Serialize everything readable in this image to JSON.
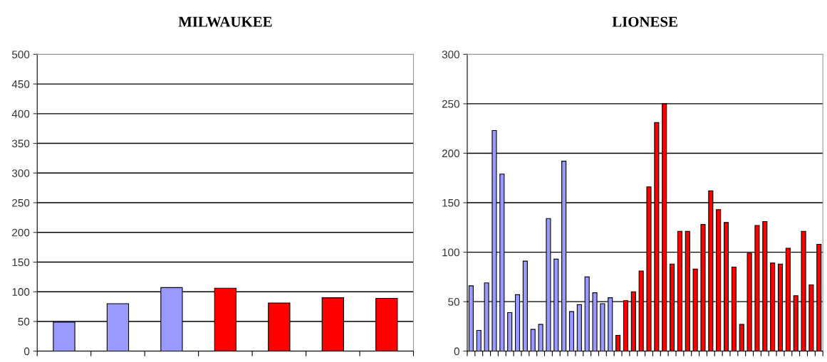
{
  "chart_data": [
    {
      "type": "bar",
      "title": "MILWAUKEE",
      "categories": [
        null,
        null,
        null,
        null,
        null,
        null,
        null
      ],
      "values": [
        49,
        80,
        107,
        106,
        81,
        90,
        89
      ],
      "colors": [
        "#9999ff",
        "#9999ff",
        "#9999ff",
        "#ff0000",
        "#ff0000",
        "#ff0000",
        "#ff0000"
      ],
      "ylim": [
        0,
        500
      ],
      "yticks": [
        0,
        50,
        100,
        150,
        200,
        250,
        300,
        350,
        400,
        450,
        500
      ],
      "grid": "y"
    },
    {
      "type": "bar",
      "title": "LIONESE",
      "categories": [
        null,
        null,
        null,
        null,
        null,
        null,
        null,
        null,
        null,
        null,
        null,
        null,
        null,
        null,
        null,
        null,
        null,
        null,
        null,
        null,
        null,
        null,
        null,
        null,
        null,
        null,
        null,
        null,
        null,
        null,
        null,
        null,
        null,
        null,
        null,
        null,
        null,
        null,
        null,
        null,
        null,
        null,
        null,
        null,
        null,
        null
      ],
      "values": [
        66,
        21,
        69,
        223,
        179,
        39,
        57,
        91,
        22,
        27,
        134,
        93,
        192,
        40,
        47,
        75,
        59,
        48,
        54,
        16,
        51,
        60,
        81,
        166,
        231,
        250,
        88,
        121,
        121,
        83,
        128,
        162,
        143,
        130,
        85,
        27,
        99,
        127,
        131,
        89,
        88,
        104,
        56,
        121,
        67,
        108
      ],
      "colors": [
        "#9999ff",
        "#9999ff",
        "#9999ff",
        "#9999ff",
        "#9999ff",
        "#9999ff",
        "#9999ff",
        "#9999ff",
        "#9999ff",
        "#9999ff",
        "#9999ff",
        "#9999ff",
        "#9999ff",
        "#9999ff",
        "#9999ff",
        "#9999ff",
        "#9999ff",
        "#9999ff",
        "#9999ff",
        "#ff0000",
        "#ff0000",
        "#ff0000",
        "#ff0000",
        "#ff0000",
        "#ff0000",
        "#ff0000",
        "#ff0000",
        "#ff0000",
        "#ff0000",
        "#ff0000",
        "#ff0000",
        "#ff0000",
        "#ff0000",
        "#ff0000",
        "#ff0000",
        "#ff0000",
        "#ff0000",
        "#ff0000",
        "#ff0000",
        "#ff0000",
        "#ff0000",
        "#ff0000",
        "#ff0000",
        "#ff0000",
        "#ff0000",
        "#ff0000"
      ],
      "ylim": [
        0,
        300
      ],
      "yticks": [
        0,
        50,
        100,
        150,
        200,
        250,
        300
      ],
      "grid": "y"
    }
  ]
}
